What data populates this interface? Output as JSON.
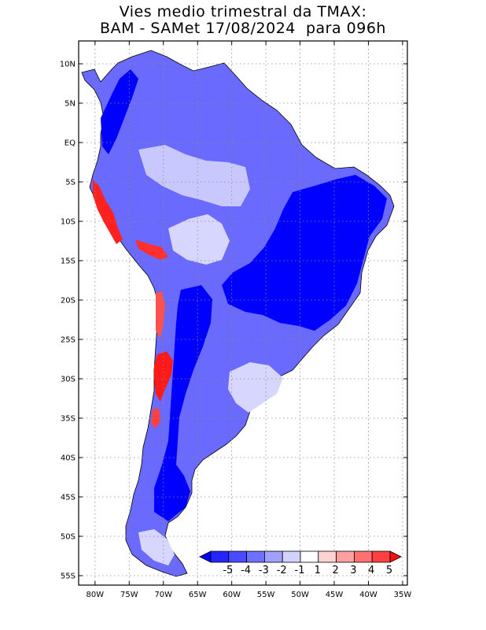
{
  "title": {
    "line1": "Vies medio trimestral da TMAX:",
    "line2": "BAM - SAMet 17/08/2024  para 096h"
  },
  "map": {
    "lat_labels": [
      "10N",
      "5N",
      "EQ",
      "5S",
      "10S",
      "15S",
      "20S",
      "25S",
      "30S",
      "35S",
      "40S",
      "45S",
      "50S",
      "55S"
    ],
    "lon_labels": [
      "80W",
      "75W",
      "70W",
      "65W",
      "60W",
      "55W",
      "50W",
      "45W",
      "40W",
      "35W"
    ],
    "lat_values": [
      10,
      5,
      0,
      -5,
      -10,
      -15,
      -20,
      -25,
      -30,
      -35,
      -40,
      -45,
      -50,
      -55
    ],
    "lon_values": [
      -80,
      -75,
      -70,
      -65,
      -60,
      -55,
      -50,
      -45,
      -40,
      -35
    ]
  },
  "colorbar": {
    "labels": [
      "-5",
      "-4",
      "-3",
      "-2",
      "-1",
      "1",
      "2",
      "3",
      "4",
      "5"
    ],
    "colors": [
      "#0000ff",
      "#2525ff",
      "#4a4aff",
      "#7070ff",
      "#a0a0ff",
      "#d2d2ff",
      "#ffffff",
      "#ffd2d2",
      "#ffa0a0",
      "#ff7070",
      "#ff4040",
      "#ff1010"
    ]
  }
}
